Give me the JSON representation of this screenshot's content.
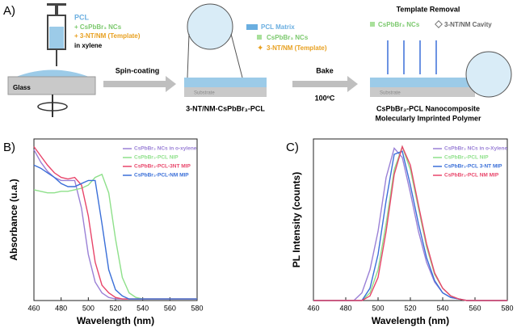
{
  "panel_a": {
    "label": "A)",
    "syringe_title": "PCL",
    "syringe_line1": "+ CsPbBr₃ NCs",
    "syringe_line2": "+ 3-NT/NM (Template)",
    "syringe_line3": "in xylene",
    "glass": "Glass",
    "step1": "Spin-coating",
    "legend_matrix": "PCL Matrix",
    "legend_ncs": "CsPbBr₃ NCs",
    "legend_template": "3-NT/NM (Template)",
    "substrate_1": "Substrate",
    "film_label": "3-NT/NM-CsPbBr₃-PCL",
    "step2": "Bake",
    "step2_temp": "100ºC",
    "removal_title": "Template Removal",
    "removal_ncs": "CsPbBr₃ NCs",
    "removal_cavity": "3-NT/NM Cavity",
    "substrate_2": "Substrate",
    "result_line1": "CsPbBr₃-PCL Nanocomposite",
    "result_line2": "Molecularly Imprinted Polymer"
  },
  "chart_data": [
    {
      "type": "line",
      "panel_label": "B)",
      "x_label": "Wavelength (nm)",
      "y_label": "Absorbance (u.a.)",
      "x": [
        460,
        465,
        470,
        475,
        480,
        485,
        490,
        495,
        500,
        505,
        510,
        515,
        520,
        525,
        530,
        535,
        540,
        545,
        550,
        555,
        560,
        565,
        570,
        575,
        580
      ],
      "xlim": [
        460,
        580
      ],
      "xticks": [
        460,
        480,
        500,
        520,
        540,
        560,
        580
      ],
      "ylim": [
        0,
        1.05
      ],
      "series": [
        {
          "name": "CsPbBr₃ NCs in o-xylene",
          "color": "#9a80d6",
          "values": [
            0.98,
            0.9,
            0.84,
            0.8,
            0.78,
            0.78,
            0.78,
            0.6,
            0.3,
            0.12,
            0.05,
            0.02,
            0.01,
            0.01,
            0.01,
            0.01,
            0.01,
            0.01,
            0.01,
            0.01,
            0.01,
            0.01,
            0.01,
            0.01,
            0.01
          ]
        },
        {
          "name": "CsPbBr₃-PCL NIP",
          "color": "#8ee08a",
          "values": [
            0.72,
            0.71,
            0.7,
            0.7,
            0.71,
            0.71,
            0.72,
            0.73,
            0.75,
            0.8,
            0.82,
            0.7,
            0.4,
            0.15,
            0.05,
            0.02,
            0.01,
            0.01,
            0.01,
            0.01,
            0.01,
            0.01,
            0.01,
            0.01,
            0.01
          ]
        },
        {
          "name": "CsPbBr₃-PCL-3NT MIP",
          "color": "#e8456a",
          "values": [
            1.0,
            0.94,
            0.88,
            0.83,
            0.8,
            0.79,
            0.8,
            0.75,
            0.55,
            0.25,
            0.1,
            0.05,
            0.02,
            0.01,
            0.01,
            0.01,
            0.01,
            0.01,
            0.01,
            0.01,
            0.01,
            0.01,
            0.01,
            0.01,
            0.01
          ]
        },
        {
          "name": "CsPbBr₃-PCL-NM MIP",
          "color": "#3a6fd8",
          "values": [
            0.88,
            0.86,
            0.83,
            0.8,
            0.76,
            0.74,
            0.74,
            0.76,
            0.78,
            0.78,
            0.5,
            0.2,
            0.07,
            0.03,
            0.01,
            0.01,
            0.01,
            0.01,
            0.01,
            0.01,
            0.01,
            0.01,
            0.01,
            0.01,
            0.01
          ]
        }
      ]
    },
    {
      "type": "line",
      "panel_label": "C)",
      "x_label": "Wavelength (nm)",
      "y_label": "PL Intensity (counts)",
      "x": [
        460,
        465,
        470,
        475,
        480,
        485,
        490,
        495,
        500,
        505,
        510,
        515,
        520,
        525,
        530,
        535,
        540,
        545,
        550,
        555,
        560,
        565,
        570,
        575,
        580
      ],
      "xlim": [
        460,
        580
      ],
      "xticks": [
        460,
        480,
        500,
        520,
        540,
        560,
        580
      ],
      "ylim": [
        0,
        1.05
      ],
      "series": [
        {
          "name": "CsPbBr₃ NCs in o-Xylene",
          "color": "#9a80d6",
          "values": [
            0,
            0,
            0,
            0,
            0,
            0,
            0.05,
            0.2,
            0.45,
            0.8,
            0.99,
            0.93,
            0.7,
            0.45,
            0.25,
            0.12,
            0.05,
            0.02,
            0.01,
            0,
            0,
            0,
            0,
            0,
            0
          ]
        },
        {
          "name": "CsPbBr₃-PCL NIP",
          "color": "#8ee08a",
          "values": [
            0,
            0,
            0,
            0,
            0,
            0,
            0,
            0.05,
            0.2,
            0.5,
            0.85,
            1.0,
            0.85,
            0.6,
            0.35,
            0.17,
            0.08,
            0.03,
            0.01,
            0,
            0,
            0,
            0,
            0,
            0
          ]
        },
        {
          "name": "CsPbBr₃-PCL 3-NT MIP",
          "color": "#3a6fd8",
          "values": [
            0,
            0,
            0,
            0,
            0,
            0,
            0,
            0.08,
            0.3,
            0.65,
            0.95,
            0.97,
            0.75,
            0.5,
            0.28,
            0.13,
            0.05,
            0.02,
            0.01,
            0,
            0,
            0,
            0,
            0,
            0
          ]
        },
        {
          "name": "CsPbBr₃-PCL NM MIP",
          "color": "#e8456a",
          "values": [
            0,
            0,
            0,
            0,
            0,
            0,
            0,
            0.03,
            0.15,
            0.45,
            0.82,
            1.0,
            0.88,
            0.62,
            0.37,
            0.18,
            0.08,
            0.03,
            0.01,
            0,
            0,
            0,
            0,
            0,
            0
          ]
        }
      ]
    }
  ]
}
